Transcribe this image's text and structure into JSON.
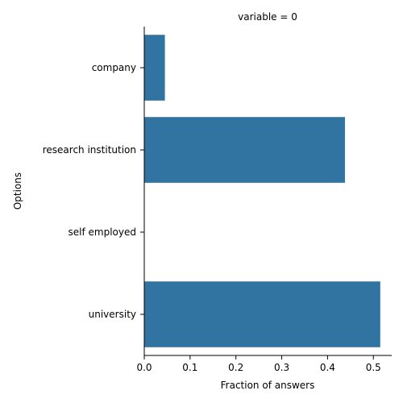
{
  "chart_data": {
    "type": "bar",
    "orientation": "horizontal",
    "title": "variable = 0",
    "xlabel": "Fraction of answers",
    "ylabel": "Options",
    "categories": [
      "company",
      "research institution",
      "self employed",
      "university"
    ],
    "values": [
      0.045,
      0.438,
      0.0,
      0.515
    ],
    "xlim": [
      0,
      0.54
    ],
    "xticks": [
      "0.0",
      "0.1",
      "0.2",
      "0.3",
      "0.4",
      "0.5"
    ],
    "grid": false,
    "legend": "none",
    "bar_color": "#3274a1"
  }
}
